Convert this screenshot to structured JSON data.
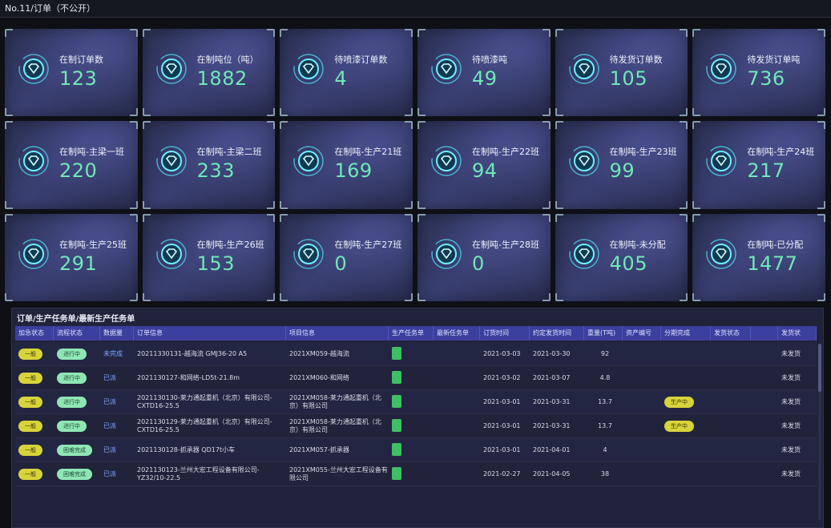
{
  "window": {
    "title": "No.11/订单（不公开）"
  },
  "stats": [
    {
      "label": "在制订单数",
      "value": "123"
    },
    {
      "label": "在制吨位（吨）",
      "value": "1882"
    },
    {
      "label": "待喷漆订单数",
      "value": "4"
    },
    {
      "label": "待喷漆吨",
      "value": "49"
    },
    {
      "label": "待发货订单数",
      "value": "105"
    },
    {
      "label": "待发货订单吨",
      "value": "736"
    },
    {
      "label": "在制吨-主梁一班",
      "value": "220"
    },
    {
      "label": "在制吨-主梁二班",
      "value": "233"
    },
    {
      "label": "在制吨-生产21班",
      "value": "169"
    },
    {
      "label": "在制吨-生产22班",
      "value": "94"
    },
    {
      "label": "在制吨-生产23班",
      "value": "99"
    },
    {
      "label": "在制吨-生产24班",
      "value": "217"
    },
    {
      "label": "在制吨-生产25班",
      "value": "291"
    },
    {
      "label": "在制吨-生产26班",
      "value": "153"
    },
    {
      "label": "在制吨-生产27班",
      "value": "0"
    },
    {
      "label": "在制吨-生产28班",
      "value": "0"
    },
    {
      "label": "在制吨-未分配",
      "value": "405"
    },
    {
      "label": "在制吨-已分配",
      "value": "1477"
    }
  ],
  "table": {
    "title": "订单/生产任务单/最新生产任务单",
    "columns": [
      "加急状态",
      "流程状态",
      "数据量",
      "订单信息",
      "项目信息",
      "生产任务单",
      "最新任务单",
      "订货时间",
      "约定发货时间",
      "重量(T吨)",
      "资产编号",
      "分期完成",
      "发货状态",
      "",
      "发货状"
    ],
    "rows": [
      {
        "urgency": "一般",
        "flow": "进行中",
        "count": "未完成",
        "order": "20211330131-越海流 GMJ36-20 A5",
        "project": "2021XM059-越海流",
        "order_date": "2021-03-03",
        "ship_date": "2021-03-30",
        "weight": "92",
        "progress": "",
        "ship_status": "未发货",
        "flow_color": "green"
      },
      {
        "urgency": "一般",
        "flow": "进行中",
        "count": "已派",
        "order": "2021130127-和网络-LD5t-21.8m",
        "project": "2021XM060-和网络",
        "order_date": "2021-03-02",
        "ship_date": "2021-03-07",
        "weight": "4.8",
        "progress": "",
        "ship_status": "未发货",
        "flow_color": "green"
      },
      {
        "urgency": "一般",
        "flow": "进行中",
        "count": "已派",
        "order": "2021130130-莱力通起重机（北京）有限公司-CXTD16-25.5",
        "project": "2021XM058-莱力通起重机（北京）有限公司",
        "order_date": "2021-03-01",
        "ship_date": "2021-03-31",
        "weight": "13.7",
        "progress": "生产中",
        "ship_status": "未发货",
        "flow_color": "green"
      },
      {
        "urgency": "一般",
        "flow": "进行中",
        "count": "已派",
        "order": "2021130129-莱力通起重机（北京）有限公司-CXTD16-25.5",
        "project": "2021XM058-莱力通起重机（北京）有限公司",
        "order_date": "2021-03-01",
        "ship_date": "2021-03-31",
        "weight": "13.7",
        "progress": "生产中",
        "ship_status": "未发货",
        "flow_color": "green"
      },
      {
        "urgency": "一般",
        "flow": "困难完成",
        "count": "已派",
        "order": "2021130128-抓承器 QD17t小车",
        "project": "2021XM057-抓承器",
        "order_date": "2021-03-01",
        "ship_date": "2021-04-01",
        "weight": "4",
        "progress": "",
        "ship_status": "未发货",
        "flow_color": "green"
      },
      {
        "urgency": "一般",
        "flow": "困难完成",
        "count": "已派",
        "order": "2021130123-兰州大宏工程设备有限公司-YZ32/10-22.5",
        "project": "2021XM055-兰州大宏工程设备有限公司",
        "order_date": "2021-02-27",
        "ship_date": "2021-04-05",
        "weight": "38",
        "progress": "",
        "ship_status": "未发货",
        "flow_color": "green"
      }
    ]
  },
  "colors": {
    "accent": "#6fe8b8",
    "header": "#3b3f9e"
  }
}
